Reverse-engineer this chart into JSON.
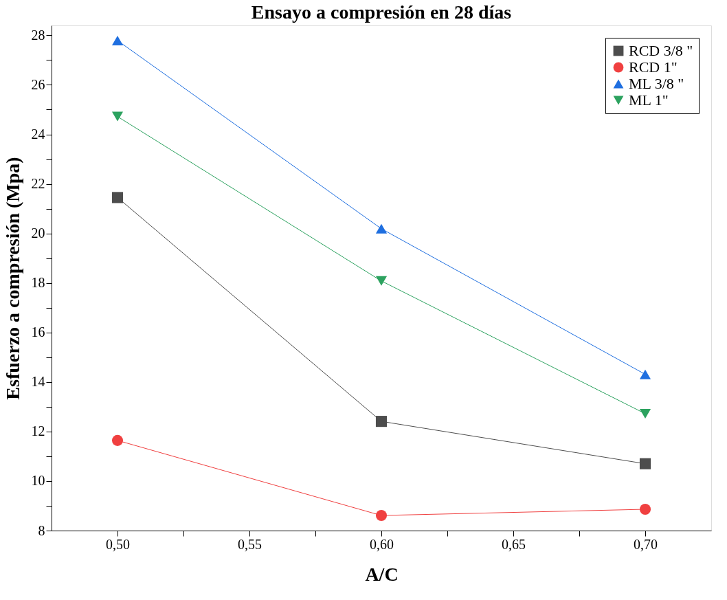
{
  "chart_data": {
    "type": "line",
    "title": "Ensayo a compresión en 28 días",
    "xlabel": "A/C",
    "ylabel": "Esfuerzo a compresión (Mpa)",
    "x": [
      0.5,
      0.6,
      0.7
    ],
    "series": [
      {
        "name": "RCD 3/8 \"",
        "color": "#4d4d4d",
        "marker": "square",
        "values": [
          21.45,
          12.41,
          10.7
        ]
      },
      {
        "name": "RCD 1\"",
        "color": "#f04040",
        "marker": "circle",
        "values": [
          11.64,
          8.61,
          8.86
        ]
      },
      {
        "name": "ML 3/8 \"",
        "color": "#1f6fe0",
        "marker": "triangle",
        "values": [
          27.79,
          20.19,
          14.31
        ]
      },
      {
        "name": "ML 1\"",
        "color": "#2ca25f",
        "marker": "triangle-down",
        "values": [
          24.72,
          18.08,
          12.72
        ]
      }
    ],
    "xlim": [
      0.475,
      0.725
    ],
    "xticks": [
      {
        "value": 0.5,
        "label": "0,50"
      },
      {
        "value": 0.525,
        "label": null
      },
      {
        "value": 0.55,
        "label": "0,55"
      },
      {
        "value": 0.575,
        "label": null
      },
      {
        "value": 0.6,
        "label": "0,60"
      },
      {
        "value": 0.625,
        "label": null
      },
      {
        "value": 0.65,
        "label": "0,65"
      },
      {
        "value": 0.675,
        "label": null
      },
      {
        "value": 0.7,
        "label": "0,70"
      }
    ],
    "ylim": [
      8,
      28.4
    ],
    "yticks": [
      8,
      {
        "value": 9,
        "label": null
      },
      10,
      {
        "value": 11,
        "label": null
      },
      12,
      {
        "value": 13,
        "label": null
      },
      14,
      {
        "value": 15,
        "label": null
      },
      16,
      {
        "value": 17,
        "label": null
      },
      18,
      {
        "value": 19,
        "label": null
      },
      20,
      {
        "value": 21,
        "label": null
      },
      22,
      {
        "value": 23,
        "label": null
      },
      24,
      {
        "value": 25,
        "label": null
      },
      26,
      {
        "value": 27,
        "label": null
      },
      28
    ],
    "grid": false,
    "legend": "top right",
    "line_style": "solid"
  }
}
